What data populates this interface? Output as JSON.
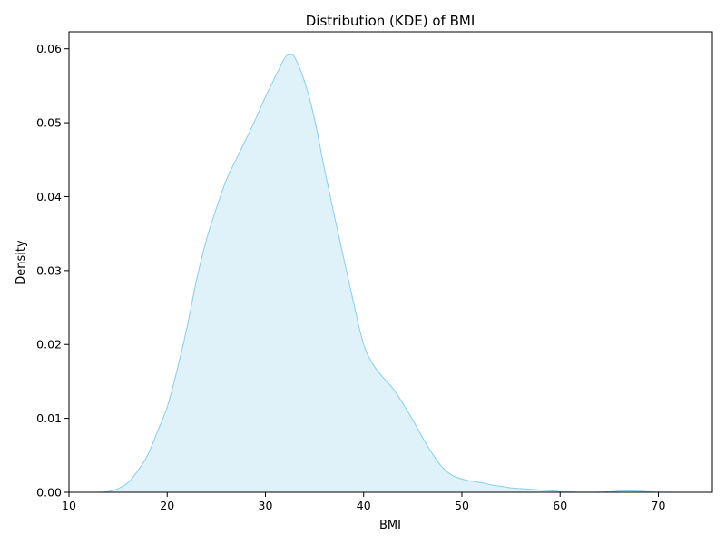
{
  "chart_data": {
    "type": "area",
    "title": "Distribution (KDE) of BMI",
    "xlabel": "BMI",
    "ylabel": "Density",
    "xlim": [
      10,
      75.5
    ],
    "ylim": [
      0,
      0.0623
    ],
    "x_ticks": [
      10,
      20,
      30,
      40,
      50,
      60,
      70
    ],
    "x_tick_labels": [
      "10",
      "20",
      "30",
      "40",
      "50",
      "60",
      "70"
    ],
    "y_ticks": [
      0,
      0.01,
      0.02,
      0.03,
      0.04,
      0.05,
      0.06
    ],
    "y_tick_labels": [
      "0.00",
      "0.01",
      "0.02",
      "0.03",
      "0.04",
      "0.05",
      "0.06"
    ],
    "grid": false,
    "legend": "none",
    "line_color": "#87ceeb",
    "fill_color": "#87ceeb",
    "fill_opacity": 0.27,
    "series": [
      {
        "x": [
          12.7,
          14,
          15,
          16,
          17,
          18,
          19,
          20,
          21,
          22,
          23,
          24,
          25,
          26,
          27,
          28,
          29,
          30,
          31,
          32,
          32.5,
          33,
          34,
          35,
          36,
          37,
          38,
          39,
          40,
          41,
          42,
          43,
          44,
          45,
          46,
          47,
          48,
          49,
          50,
          51,
          52,
          53,
          54,
          55,
          56,
          57,
          58,
          59,
          60,
          61,
          62,
          63,
          64,
          65,
          66,
          67,
          68,
          69,
          70,
          71,
          72.6
        ],
        "y": [
          0,
          0.0001,
          0.0005,
          0.0013,
          0.0029,
          0.005,
          0.0082,
          0.0115,
          0.0165,
          0.0222,
          0.0288,
          0.0342,
          0.0384,
          0.0422,
          0.045,
          0.0477,
          0.0505,
          0.0535,
          0.0562,
          0.0588,
          0.0592,
          0.0588,
          0.0555,
          0.0505,
          0.0438,
          0.0375,
          0.0315,
          0.0255,
          0.02,
          0.0172,
          0.0155,
          0.014,
          0.012,
          0.0098,
          0.0074,
          0.0052,
          0.0034,
          0.0023,
          0.0018,
          0.0015,
          0.0013,
          0.001,
          0.0008,
          0.0006,
          0.0005,
          0.0004,
          0.0003,
          0.0002,
          0.0001,
          5e-05,
          2e-05,
          1e-05,
          3e-05,
          8e-05,
          0.00015,
          0.0002,
          0.00015,
          8e-05,
          3e-05,
          1e-05,
          0
        ]
      }
    ]
  }
}
